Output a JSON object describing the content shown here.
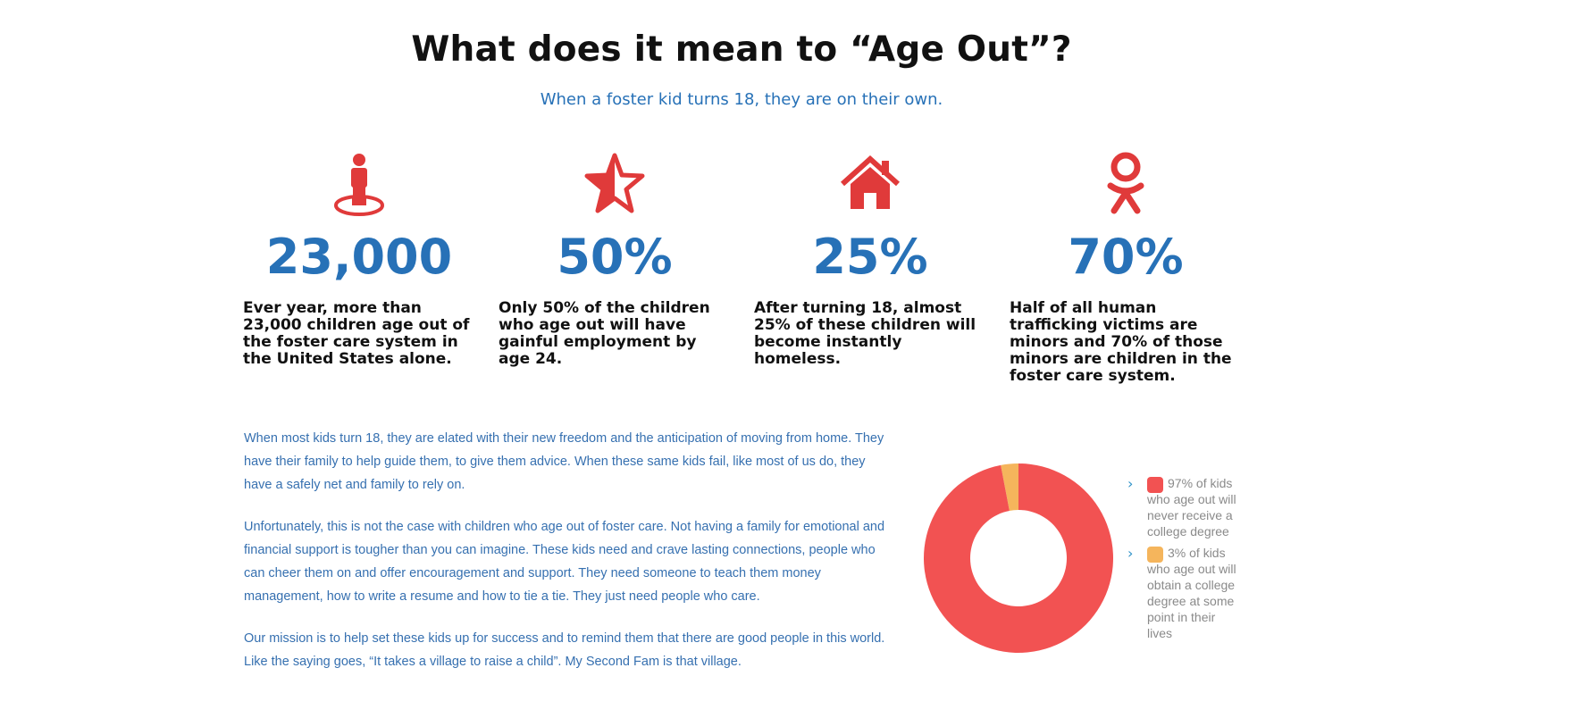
{
  "header": {
    "title": "What does it mean to “Age Out”?",
    "subtitle": "When a foster kid turns 18, they are on their own."
  },
  "stats": [
    {
      "icon": "person-location-icon",
      "value": "23,000",
      "description": "Ever year, more than 23,000 children age out of the foster care system in the United States alone."
    },
    {
      "icon": "half-star-icon",
      "value": "50%",
      "description": "Only 50% of the children who age out will have gainful employment by age 24."
    },
    {
      "icon": "home-icon",
      "value": "25%",
      "description": "After turning 18, almost 25% of these children will become instantly homeless."
    },
    {
      "icon": "odnoklassniki-icon",
      "value": "70%",
      "description": "Half of all human trafficking victims are minors and 70% of those minors are children in the foster care system."
    }
  ],
  "paragraphs": [
    "When most kids turn 18, they are elated with their new freedom and the anticipation of moving from home. They have their family to help guide them, to give them advice. When these same kids fail, like most of us do, they have a safely net and family to rely on.",
    "Unfortunately, this is not the case with children who age out of foster care. Not having a family for emotional and financial support is tougher than you can imagine. These kids need and crave lasting connections, people who can cheer them on and offer encouragement and support. They need someone to teach them money management, how to write a resume and how to tie a tie. They just need people who care.",
    "Our mission is to help set these kids up for success and to remind them that there are good people in this world. Like the saying goes, “It takes a village to raise a child”. My Second Fam is that village."
  ],
  "colors": {
    "accent_red": "#e03a3a",
    "accent_blue": "#2771b7",
    "slice_red": "#f25252",
    "slice_orange": "#f5b55c"
  },
  "chart_data": {
    "type": "pie",
    "donut": true,
    "slices": [
      {
        "label": "97% of kids who age out will never receive a college degree",
        "value": 97,
        "color": "#f25252"
      },
      {
        "label": "3% of kids who age out will obtain a college degree at some point in their lives",
        "value": 3,
        "color": "#f5b55c"
      }
    ],
    "legend_position": "right"
  }
}
